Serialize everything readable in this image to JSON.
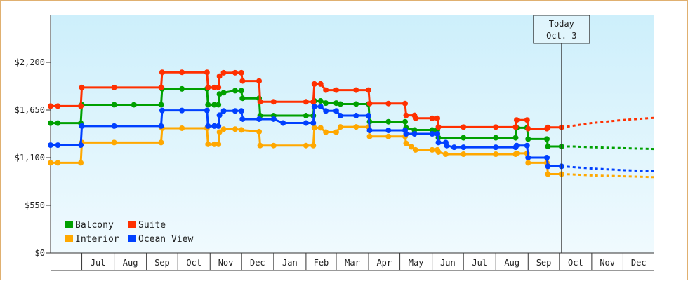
{
  "chart_data": {
    "type": "line",
    "ylim": [
      0,
      2750
    ],
    "yticks": [
      0,
      550,
      1100,
      1650,
      2200
    ],
    "ytick_labels": [
      "$0",
      "$550",
      "$1,100",
      "$1,650",
      "$2,200"
    ],
    "xlim": [
      "2015-06-01",
      "2016-12-31"
    ],
    "months": [
      {
        "label": "Jul",
        "start": "2015-07-01",
        "end": "2015-08-01"
      },
      {
        "label": "Aug",
        "start": "2015-08-01",
        "end": "2015-09-01"
      },
      {
        "label": "Sep",
        "start": "2015-09-01",
        "end": "2015-10-01"
      },
      {
        "label": "Oct",
        "start": "2015-10-01",
        "end": "2015-11-01"
      },
      {
        "label": "Nov",
        "start": "2015-11-01",
        "end": "2015-12-01"
      },
      {
        "label": "Dec",
        "start": "2015-12-01",
        "end": "2016-01-01"
      },
      {
        "label": "Jan",
        "start": "2016-01-01",
        "end": "2016-02-01"
      },
      {
        "label": "Feb",
        "start": "2016-02-01",
        "end": "2016-03-01"
      },
      {
        "label": "Mar",
        "start": "2016-03-01",
        "end": "2016-04-01"
      },
      {
        "label": "Apr",
        "start": "2016-04-01",
        "end": "2016-05-01"
      },
      {
        "label": "May",
        "start": "2016-05-01",
        "end": "2016-06-01"
      },
      {
        "label": "Jun",
        "start": "2016-06-01",
        "end": "2016-07-01"
      },
      {
        "label": "Jul",
        "start": "2016-07-01",
        "end": "2016-08-01"
      },
      {
        "label": "Aug",
        "start": "2016-08-01",
        "end": "2016-09-01"
      },
      {
        "label": "Sep",
        "start": "2016-09-01",
        "end": "2016-10-01"
      },
      {
        "label": "Oct",
        "start": "2016-10-01",
        "end": "2016-11-01"
      },
      {
        "label": "Nov",
        "start": "2016-11-01",
        "end": "2016-12-01"
      },
      {
        "label": "Dec",
        "start": "2016-12-01",
        "end": "2016-12-31"
      }
    ],
    "today": {
      "date": "2016-10-03",
      "line1": "Today",
      "line2": "Oct. 3"
    },
    "legend_position": "bottom-left",
    "grid": false,
    "background_gradient": [
      "#cdeffb",
      "#f0fafe"
    ],
    "series": [
      {
        "name": "Balcony",
        "color": "#00a000",
        "points": [
          [
            "2015-06-01",
            1499
          ],
          [
            "2015-06-08",
            1499
          ],
          [
            "2015-06-30",
            1499
          ],
          [
            "2015-07-01",
            1711
          ],
          [
            "2015-08-01",
            1711
          ],
          [
            "2015-08-20",
            1711
          ],
          [
            "2015-09-15",
            1711
          ],
          [
            "2015-09-16",
            1894
          ],
          [
            "2015-10-05",
            1894
          ],
          [
            "2015-10-29",
            1894
          ],
          [
            "2015-10-30",
            1711
          ],
          [
            "2015-11-05",
            1711
          ],
          [
            "2015-11-09",
            1711
          ],
          [
            "2015-11-10",
            1834
          ],
          [
            "2015-11-14",
            1850
          ],
          [
            "2015-11-25",
            1873
          ],
          [
            "2015-12-01",
            1873
          ],
          [
            "2015-12-02",
            1785
          ],
          [
            "2015-12-18",
            1785
          ],
          [
            "2015-12-19",
            1585
          ],
          [
            "2016-01-01",
            1585
          ],
          [
            "2016-02-01",
            1585
          ],
          [
            "2016-02-08",
            1585
          ],
          [
            "2016-02-09",
            1755
          ],
          [
            "2016-02-15",
            1755
          ],
          [
            "2016-02-20",
            1730
          ],
          [
            "2016-03-01",
            1730
          ],
          [
            "2016-03-05",
            1719
          ],
          [
            "2016-03-20",
            1719
          ],
          [
            "2016-04-01",
            1719
          ],
          [
            "2016-04-02",
            1515
          ],
          [
            "2016-04-20",
            1515
          ],
          [
            "2016-05-06",
            1515
          ],
          [
            "2016-05-07",
            1445
          ],
          [
            "2016-05-15",
            1419
          ],
          [
            "2016-06-01",
            1419
          ],
          [
            "2016-06-06",
            1419
          ],
          [
            "2016-06-07",
            1330
          ],
          [
            "2016-07-01",
            1330
          ],
          [
            "2016-08-01",
            1330
          ],
          [
            "2016-08-20",
            1330
          ],
          [
            "2016-08-21",
            1445
          ],
          [
            "2016-08-31",
            1445
          ],
          [
            "2016-09-01",
            1315
          ],
          [
            "2016-09-19",
            1315
          ],
          [
            "2016-09-20",
            1229
          ],
          [
            "2016-10-03",
            1229
          ]
        ],
        "forecast": [
          [
            "2016-10-03",
            1229
          ],
          [
            "2016-10-15",
            1229
          ],
          [
            "2016-11-01",
            1220
          ],
          [
            "2016-12-01",
            1210
          ],
          [
            "2016-12-31",
            1200
          ]
        ]
      },
      {
        "name": "Suite",
        "color": "#ff3000",
        "points": [
          [
            "2015-06-01",
            1695
          ],
          [
            "2015-06-08",
            1695
          ],
          [
            "2015-06-30",
            1695
          ],
          [
            "2015-07-01",
            1910
          ],
          [
            "2015-08-01",
            1910
          ],
          [
            "2015-09-15",
            1910
          ],
          [
            "2015-09-16",
            2085
          ],
          [
            "2015-10-05",
            2085
          ],
          [
            "2015-10-29",
            2085
          ],
          [
            "2015-10-30",
            1910
          ],
          [
            "2015-11-05",
            1910
          ],
          [
            "2015-11-09",
            1910
          ],
          [
            "2015-11-10",
            2040
          ],
          [
            "2015-11-14",
            2080
          ],
          [
            "2015-11-25",
            2080
          ],
          [
            "2015-12-01",
            2080
          ],
          [
            "2015-12-02",
            1985
          ],
          [
            "2015-12-18",
            1985
          ],
          [
            "2015-12-19",
            1745
          ],
          [
            "2016-01-01",
            1745
          ],
          [
            "2016-02-01",
            1745
          ],
          [
            "2016-02-08",
            1745
          ],
          [
            "2016-02-09",
            1950
          ],
          [
            "2016-02-15",
            1950
          ],
          [
            "2016-02-20",
            1880
          ],
          [
            "2016-03-01",
            1880
          ],
          [
            "2016-03-20",
            1880
          ],
          [
            "2016-04-01",
            1880
          ],
          [
            "2016-04-02",
            1725
          ],
          [
            "2016-04-20",
            1725
          ],
          [
            "2016-05-06",
            1725
          ],
          [
            "2016-05-07",
            1588
          ],
          [
            "2016-05-15",
            1588
          ],
          [
            "2016-05-16",
            1555
          ],
          [
            "2016-06-01",
            1555
          ],
          [
            "2016-06-06",
            1555
          ],
          [
            "2016-06-07",
            1453
          ],
          [
            "2016-07-01",
            1453
          ],
          [
            "2016-08-01",
            1453
          ],
          [
            "2016-08-20",
            1453
          ],
          [
            "2016-08-21",
            1535
          ],
          [
            "2016-08-31",
            1535
          ],
          [
            "2016-09-01",
            1435
          ],
          [
            "2016-09-19",
            1435
          ],
          [
            "2016-09-20",
            1450
          ],
          [
            "2016-10-03",
            1450
          ]
        ],
        "forecast": [
          [
            "2016-10-03",
            1450
          ],
          [
            "2016-10-15",
            1470
          ],
          [
            "2016-11-01",
            1500
          ],
          [
            "2016-12-01",
            1535
          ],
          [
            "2016-12-31",
            1560
          ]
        ]
      },
      {
        "name": "Interior",
        "color": "#ffa800",
        "points": [
          [
            "2015-06-01",
            1040
          ],
          [
            "2015-06-08",
            1040
          ],
          [
            "2015-06-30",
            1040
          ],
          [
            "2015-07-01",
            1275
          ],
          [
            "2015-08-01",
            1275
          ],
          [
            "2015-09-15",
            1275
          ],
          [
            "2015-09-16",
            1440
          ],
          [
            "2015-10-05",
            1440
          ],
          [
            "2015-10-29",
            1440
          ],
          [
            "2015-10-30",
            1255
          ],
          [
            "2015-11-05",
            1255
          ],
          [
            "2015-11-09",
            1255
          ],
          [
            "2015-11-10",
            1395
          ],
          [
            "2015-11-14",
            1430
          ],
          [
            "2015-11-25",
            1430
          ],
          [
            "2015-12-01",
            1420
          ],
          [
            "2015-12-18",
            1400
          ],
          [
            "2015-12-19",
            1240
          ],
          [
            "2016-01-01",
            1240
          ],
          [
            "2016-02-01",
            1240
          ],
          [
            "2016-02-08",
            1240
          ],
          [
            "2016-02-09",
            1445
          ],
          [
            "2016-02-15",
            1445
          ],
          [
            "2016-02-20",
            1395
          ],
          [
            "2016-03-01",
            1395
          ],
          [
            "2016-03-05",
            1455
          ],
          [
            "2016-03-20",
            1455
          ],
          [
            "2016-04-01",
            1455
          ],
          [
            "2016-04-02",
            1345
          ],
          [
            "2016-04-20",
            1345
          ],
          [
            "2016-05-06",
            1345
          ],
          [
            "2016-05-07",
            1265
          ],
          [
            "2016-05-12",
            1225
          ],
          [
            "2016-05-16",
            1190
          ],
          [
            "2016-06-01",
            1190
          ],
          [
            "2016-06-06",
            1190
          ],
          [
            "2016-06-07",
            1165
          ],
          [
            "2016-06-14",
            1140
          ],
          [
            "2016-07-01",
            1140
          ],
          [
            "2016-08-01",
            1140
          ],
          [
            "2016-08-20",
            1140
          ],
          [
            "2016-08-21",
            1150
          ],
          [
            "2016-08-31",
            1150
          ],
          [
            "2016-09-01",
            1040
          ],
          [
            "2016-09-19",
            1040
          ],
          [
            "2016-09-20",
            910
          ],
          [
            "2016-10-03",
            910
          ]
        ],
        "forecast": [
          [
            "2016-10-03",
            910
          ],
          [
            "2016-10-15",
            905
          ],
          [
            "2016-11-01",
            895
          ],
          [
            "2016-12-01",
            885
          ],
          [
            "2016-12-31",
            875
          ]
        ]
      },
      {
        "name": "Ocean View",
        "color": "#0040ff",
        "points": [
          [
            "2015-06-01",
            1245
          ],
          [
            "2015-06-08",
            1245
          ],
          [
            "2015-06-30",
            1245
          ],
          [
            "2015-07-01",
            1465
          ],
          [
            "2015-08-01",
            1465
          ],
          [
            "2015-09-15",
            1465
          ],
          [
            "2015-09-16",
            1645
          ],
          [
            "2015-10-05",
            1645
          ],
          [
            "2015-10-29",
            1645
          ],
          [
            "2015-10-30",
            1465
          ],
          [
            "2015-11-05",
            1465
          ],
          [
            "2015-11-09",
            1465
          ],
          [
            "2015-11-10",
            1590
          ],
          [
            "2015-11-14",
            1640
          ],
          [
            "2015-11-25",
            1640
          ],
          [
            "2015-12-01",
            1640
          ],
          [
            "2015-12-02",
            1545
          ],
          [
            "2015-12-18",
            1545
          ],
          [
            "2016-01-01",
            1545
          ],
          [
            "2016-01-10",
            1500
          ],
          [
            "2016-02-01",
            1500
          ],
          [
            "2016-02-08",
            1500
          ],
          [
            "2016-02-09",
            1690
          ],
          [
            "2016-02-15",
            1690
          ],
          [
            "2016-02-20",
            1640
          ],
          [
            "2016-03-01",
            1640
          ],
          [
            "2016-03-05",
            1585
          ],
          [
            "2016-03-20",
            1585
          ],
          [
            "2016-04-01",
            1585
          ],
          [
            "2016-04-02",
            1415
          ],
          [
            "2016-04-20",
            1415
          ],
          [
            "2016-05-06",
            1415
          ],
          [
            "2016-05-07",
            1375
          ],
          [
            "2016-05-15",
            1375
          ],
          [
            "2016-06-01",
            1375
          ],
          [
            "2016-06-06",
            1375
          ],
          [
            "2016-06-07",
            1275
          ],
          [
            "2016-06-14",
            1275
          ],
          [
            "2016-06-15",
            1240
          ],
          [
            "2016-06-22",
            1220
          ],
          [
            "2016-07-01",
            1220
          ],
          [
            "2016-08-01",
            1220
          ],
          [
            "2016-08-20",
            1220
          ],
          [
            "2016-08-21",
            1240
          ],
          [
            "2016-08-31",
            1240
          ],
          [
            "2016-09-01",
            1100
          ],
          [
            "2016-09-19",
            1100
          ],
          [
            "2016-09-20",
            1000
          ],
          [
            "2016-10-03",
            1000
          ]
        ],
        "forecast": [
          [
            "2016-10-03",
            1000
          ],
          [
            "2016-10-15",
            990
          ],
          [
            "2016-11-01",
            975
          ],
          [
            "2016-12-01",
            955
          ],
          [
            "2016-12-31",
            945
          ]
        ]
      }
    ]
  }
}
